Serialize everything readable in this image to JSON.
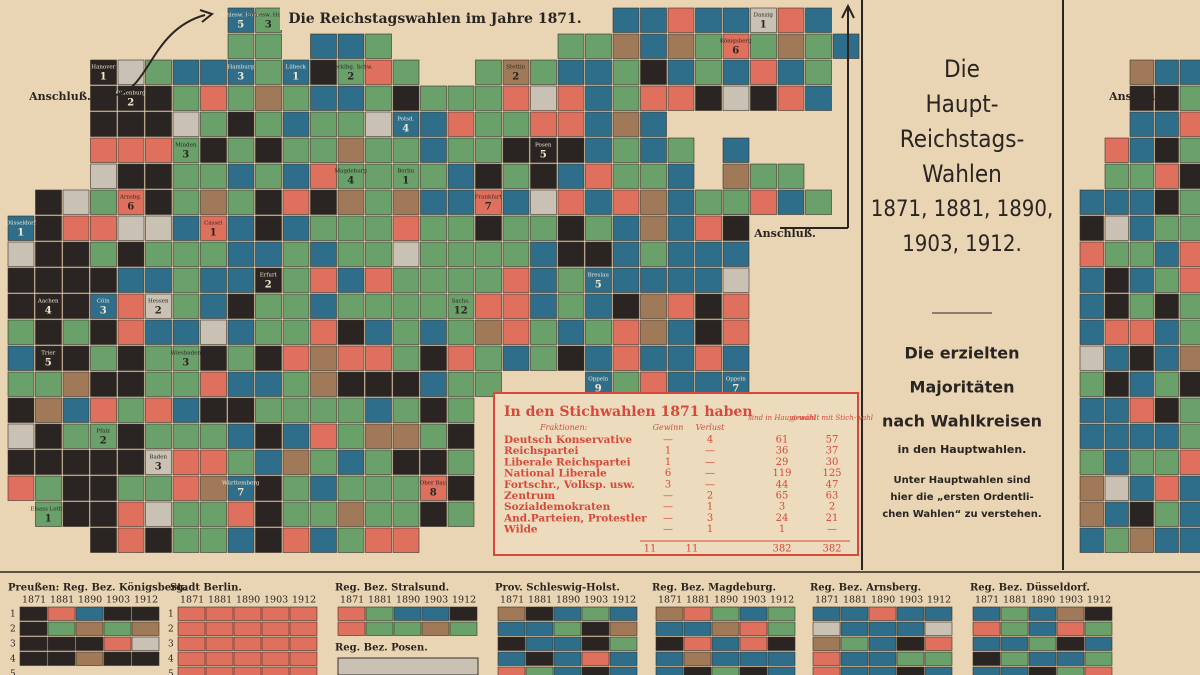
{
  "map": {
    "title": "Die Reichstagswahlen im Jahre 1871.",
    "anschluss": "Anschluß.",
    "cells": [
      {
        "label": "Schlesw. Holst.",
        "number": 5
      },
      {
        "label": "Schlesw. Holst.",
        "number": 3
      },
      {
        "label": "Hanover",
        "number": 1
      },
      {
        "label": "Oldenburg",
        "number": 2
      },
      {
        "label": "Hamburg",
        "number": 3
      },
      {
        "label": "Lübeck",
        "number": 1
      },
      {
        "label": "Mecklbg. Schw.",
        "number": 2
      },
      {
        "label": "Stettin",
        "number": 2
      },
      {
        "label": "Königsberg",
        "number": 6
      },
      {
        "label": "Danzig",
        "number": 1
      },
      {
        "label": "Potsd.",
        "number": 4
      },
      {
        "label": "Berlin",
        "number": 1
      },
      {
        "label": "Posen",
        "number": 5
      },
      {
        "label": "Minden",
        "number": 3
      },
      {
        "label": "Magdeburg",
        "number": 4
      },
      {
        "label": "Frankfurt",
        "number": 7
      },
      {
        "label": "Arnsbg.",
        "number": 6
      },
      {
        "label": "Cassel",
        "number": 1
      },
      {
        "label": "Erfurt",
        "number": 2
      },
      {
        "label": "Sachs.",
        "number": 12
      },
      {
        "label": "Breslau",
        "number": 5
      },
      {
        "label": "Düsseldorf",
        "number": 1
      },
      {
        "label": "Cöln",
        "number": 3
      },
      {
        "label": "Hessen",
        "number": 2
      },
      {
        "label": "Oppeln",
        "number": 9
      },
      {
        "label": "Aachen",
        "number": 4
      },
      {
        "label": "Trier",
        "number": 5
      },
      {
        "label": "Wiesbaden",
        "number": 3
      },
      {
        "label": "Pfalz",
        "number": 2
      },
      {
        "label": "Baden",
        "number": 3
      },
      {
        "label": "Württemberg",
        "number": 7
      },
      {
        "label": "Ober Bay.",
        "number": 8
      },
      {
        "label": "Elsass Lothr.",
        "number": 1
      },
      {
        "label": "Oppeln",
        "number": 7
      }
    ]
  },
  "stichwahl": {
    "title": "In den Stichwahlen 1871 haben",
    "headers": [
      "Fraktionen:",
      "Gewinn",
      "Verlust",
      "sind in Haupt-wahl",
      "gewählt mit Stich-wahl"
    ],
    "rows": [
      [
        "Deutsch Konservative",
        "—",
        "4",
        "61",
        "57"
      ],
      [
        "Reichspartei",
        "1",
        "—",
        "36",
        "37"
      ],
      [
        "Liberale Reichspartei",
        "1",
        "—",
        "29",
        "30"
      ],
      [
        "National Liberale",
        "6",
        "—",
        "119",
        "125"
      ],
      [
        "Fortschr., Volksp. usw.",
        "3",
        "—",
        "44",
        "47"
      ],
      [
        "Zentrum",
        "—",
        "2",
        "65",
        "63"
      ],
      [
        "Sozialdemokraten",
        "—",
        "1",
        "3",
        "2"
      ],
      [
        "And.Parteien, Protestler",
        "—",
        "3",
        "24",
        "21"
      ],
      [
        "Wilde",
        "—",
        "1",
        "1",
        "—"
      ]
    ],
    "totals": [
      "11",
      "11",
      "382",
      "382"
    ]
  },
  "panel": {
    "title": [
      "Die",
      "Haupt-",
      "Reichstags-",
      "Wahlen",
      "1871, 1881, 1890,",
      "1903, 1912."
    ],
    "subtitle": [
      "Die erzielten",
      "Majoritäten",
      "nach Wahlkreisen"
    ],
    "note1": "in den Hauptwahlen.",
    "note2": [
      "Unter Hauptwahlen sind",
      "hier die „ersten Ordentli-",
      "chen Wahlen“ zu verstehen."
    ]
  },
  "regions": {
    "years": [
      "1871",
      "1881",
      "1890",
      "1903",
      "1912"
    ],
    "row_numbers": [
      "1",
      "2",
      "3",
      "4",
      "5"
    ],
    "names": [
      "Preußen: Reg. Bez. Königsberg.",
      "Stadt Berlin.",
      "Reg. Bez. Stralsund.",
      "Prov. Schleswig-Holst.",
      "Reg. Bez. Magdeburg.",
      "Reg. Bez. Arnsberg.",
      "Reg. Bez. Düsseldorf.",
      "Reg. Bez. Posen."
    ]
  }
}
